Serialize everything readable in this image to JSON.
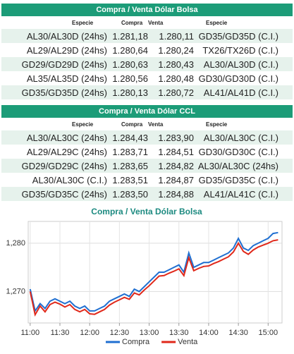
{
  "tables": [
    {
      "title": "Compra / Venta Dólar Bolsa",
      "columns": [
        "Especie",
        "Compra",
        "Venta",
        "Especie"
      ],
      "rows": [
        [
          "AL30/AL30D (24hs)",
          "1.281,18",
          "1.280,11",
          "GD35/GD35D (C.I.)"
        ],
        [
          "AL29/AL29D (24hs)",
          "1.280,64",
          "1.280,24",
          "TX26/TX26D (C.I.)"
        ],
        [
          "GD29/GD29D (24hs)",
          "1.280,63",
          "1.280,43",
          "AL30/AL30D (C.I.)"
        ],
        [
          "AL35/AL35D (24hs)",
          "1.280,56",
          "1.280,48",
          "GD30/GD30D (C.I.)"
        ],
        [
          "GD35/GD35D (24hs)",
          "1.280,13",
          "1.280,72",
          "AL41/AL41D (C.I.)"
        ]
      ]
    },
    {
      "title": "Compra / Venta Dólar CCL",
      "columns": [
        "Especie",
        "Compra",
        "Venta",
        "Especie"
      ],
      "rows": [
        [
          "AL30/AL30C (24hs)",
          "1.284,43",
          "1.283,90",
          "AL30/AL30C (C.I.)"
        ],
        [
          "AL29/AL29C (24hs)",
          "1.283,71",
          "1.284,51",
          "GD30/GD30C (C.I.)"
        ],
        [
          "GD29/GD29C (24hs)",
          "1.283,65",
          "1.284,82",
          "AL30/AL30C (24hs)"
        ],
        [
          "AL30/AL30C (C.I.)",
          "1.283,51",
          "1.284,87",
          "GD35/GD35C (C.I.)"
        ],
        [
          "GD35/GD35C (24hs)",
          "1.283,50",
          "1.284,88",
          "AL41/AL41C (C.I.)"
        ]
      ]
    }
  ],
  "chart_data": {
    "type": "line",
    "title": "Compra / Venta Dólar Bolsa",
    "x": [
      "11:00",
      "11:05",
      "11:10",
      "11:15",
      "11:20",
      "11:25",
      "11:30",
      "11:35",
      "11:40",
      "11:45",
      "11:50",
      "11:55",
      "12:00",
      "12:05",
      "12:10",
      "12:15",
      "12:20",
      "12:25",
      "12:30",
      "12:35",
      "12:40",
      "12:45",
      "12:50",
      "12:55",
      "13:00",
      "13:05",
      "13:10",
      "13:15",
      "13:20",
      "13:25",
      "13:30",
      "13:35",
      "13:40",
      "13:45",
      "13:50",
      "13:55",
      "14:00",
      "14:05",
      "14:10",
      "14:15",
      "14:20",
      "14:25",
      "14:30",
      "14:35",
      "14:40",
      "14:45",
      "14:50",
      "14:55",
      "15:00",
      "15:05",
      "15:10"
    ],
    "series": [
      {
        "name": "Compra",
        "color": "#1f6fd1",
        "values": [
          1270.5,
          1266,
          1267.5,
          1266.5,
          1268,
          1268.5,
          1268,
          1267.5,
          1268,
          1267,
          1266.5,
          1267,
          1266,
          1266,
          1266.5,
          1267,
          1268,
          1268.5,
          1269,
          1269.5,
          1269,
          1270.5,
          1270,
          1271,
          1272,
          1273,
          1274,
          1274,
          1274.5,
          1275,
          1275.5,
          1274,
          1278,
          1275,
          1275.5,
          1276,
          1276,
          1276.5,
          1277,
          1277.5,
          1278,
          1279,
          1281,
          1279,
          1278.5,
          1279.5,
          1280,
          1280.5,
          1281,
          1282,
          1282.2
        ]
      },
      {
        "name": "Venta",
        "color": "#e0281a",
        "values": [
          1270,
          1265.2,
          1267,
          1265.8,
          1267.3,
          1267.8,
          1267.4,
          1266.8,
          1267.3,
          1266.3,
          1265.8,
          1266.3,
          1265.4,
          1265.3,
          1265.8,
          1266.3,
          1267.2,
          1267.8,
          1268.3,
          1268.8,
          1268.4,
          1269.7,
          1269.3,
          1270.3,
          1271.2,
          1272.2,
          1273.2,
          1273.3,
          1273.8,
          1274.2,
          1274.7,
          1273.3,
          1277,
          1274.3,
          1274.8,
          1275.2,
          1275.3,
          1275.8,
          1276.2,
          1276.7,
          1277.2,
          1278.2,
          1280,
          1278.3,
          1277.7,
          1278.6,
          1279.2,
          1279.6,
          1280,
          1280.5,
          1280.7
        ]
      }
    ],
    "xlim": [
      "10:58",
      "15:14"
    ],
    "xticks": [
      "11:00",
      "11:30",
      "12:00",
      "12:30",
      "13:00",
      "13:30",
      "14:00",
      "14:30",
      "15:00"
    ],
    "ylim": [
      1263.5,
      1284.5
    ],
    "yticks": [
      {
        "value": 1270,
        "label": "1,270"
      },
      {
        "value": 1280,
        "label": "1,280"
      }
    ],
    "grid": true
  }
}
